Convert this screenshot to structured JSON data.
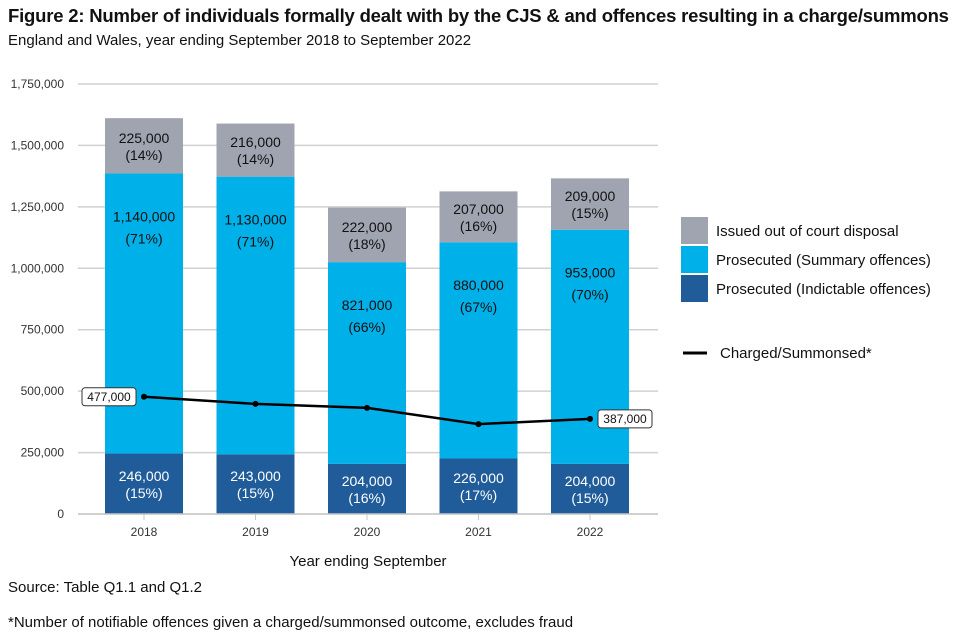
{
  "title": "Figure 2: Number of individuals formally dealt with by the CJS & and offences resulting in a charge/summons",
  "subtitle": "England and Wales, year ending September 2018 to September 2022",
  "source": "Source: Table Q1.1 and Q1.2",
  "footnote": "*Number of notifiable offences given a charged/summonsed outcome, excludes fraud",
  "chart_data": {
    "type": "bar",
    "stacked": true,
    "title": "Figure 2: Number of individuals formally dealt with by the CJS & and offences resulting in a charge/summons",
    "subtitle": "England and Wales, year ending September 2018 to September 2022",
    "xlabel": "Year ending September",
    "ylabel": "",
    "ylim": [
      0,
      1750000
    ],
    "yticks": [
      0,
      250000,
      500000,
      750000,
      1000000,
      1250000,
      1500000,
      1750000
    ],
    "ytick_labels": [
      "0",
      "250,000",
      "500,000",
      "750,000",
      "1,000,000",
      "1,250,000",
      "1,500,000",
      "1,750,000"
    ],
    "grid": true,
    "legend_position": "right",
    "categories": [
      "2018",
      "2019",
      "2020",
      "2021",
      "2022"
    ],
    "series": [
      {
        "name": "Prosecuted (Indictable offences)",
        "color": "#1f5c99",
        "label_color": "#ffffff",
        "values": [
          246000,
          243000,
          204000,
          226000,
          204000
        ],
        "labels": [
          "246,000",
          "243,000",
          "204,000",
          "226,000",
          "204,000"
        ],
        "pct_labels": [
          "(15%)",
          "(15%)",
          "(16%)",
          "(17%)",
          "(15%)"
        ]
      },
      {
        "name": "Prosecuted (Summary offences)",
        "color": "#00b0e8",
        "label_color": "#111111",
        "values": [
          1140000,
          1130000,
          821000,
          880000,
          953000
        ],
        "labels": [
          "1,140,000",
          "1,130,000",
          "821,000",
          "880,000",
          "953,000"
        ],
        "pct_labels": [
          "(71%)",
          "(71%)",
          "(66%)",
          "(67%)",
          "(70%)"
        ]
      },
      {
        "name": "Issued out of court disposal",
        "color": "#a0a4b0",
        "label_color": "#111111",
        "values": [
          225000,
          216000,
          222000,
          207000,
          209000
        ],
        "labels": [
          "225,000",
          "216,000",
          "222,000",
          "207,000",
          "209,000"
        ],
        "pct_labels": [
          "(14%)",
          "(14%)",
          "(18%)",
          "(16%)",
          "(15%)"
        ]
      }
    ],
    "line_series": {
      "name": "Charged/Summonsed*",
      "type": "line",
      "color": "#000000",
      "values": [
        477000,
        448000,
        432000,
        366000,
        387000
      ],
      "annotations": [
        {
          "index": 0,
          "label": "477,000"
        },
        {
          "index": 4,
          "label": "387,000"
        }
      ]
    },
    "legend": [
      {
        "name": "Issued out of court disposal",
        "color": "#a0a4b0",
        "kind": "box"
      },
      {
        "name": "Prosecuted (Summary offences)",
        "color": "#00b0e8",
        "kind": "box"
      },
      {
        "name": "Prosecuted (Indictable offences)",
        "color": "#1f5c99",
        "kind": "box"
      },
      {
        "name": "Charged/Summonsed*",
        "color": "#000000",
        "kind": "line"
      }
    ]
  }
}
